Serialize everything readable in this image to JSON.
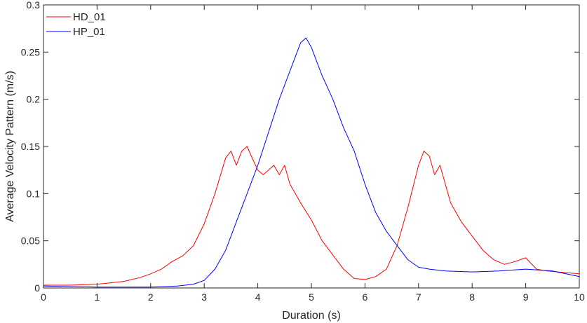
{
  "chart_data": {
    "type": "line",
    "title": "",
    "xlabel": "Duration (s)",
    "ylabel": "Average Velocity Pattern (m/s)",
    "xlim": [
      0,
      10
    ],
    "ylim": [
      0,
      0.3
    ],
    "x_ticks": [
      0,
      1,
      2,
      3,
      4,
      5,
      6,
      7,
      8,
      9,
      10
    ],
    "x_tick_labels": [
      "0",
      "1",
      "2",
      "3",
      "4",
      "5",
      "6",
      "7",
      "8",
      "9",
      "10"
    ],
    "y_ticks": [
      0,
      0.05,
      0.1,
      0.15,
      0.2,
      0.25,
      0.3
    ],
    "y_tick_labels": [
      "0",
      "0.05",
      "0.1",
      "0.15",
      "0.2",
      "0.25",
      "0.3"
    ],
    "grid": false,
    "legend_position": "top-left",
    "series": [
      {
        "name": "HD_01",
        "color": "#ff0000",
        "x": [
          0,
          0.5,
          1.0,
          1.5,
          1.8,
          2.0,
          2.2,
          2.4,
          2.6,
          2.8,
          3.0,
          3.2,
          3.4,
          3.5,
          3.6,
          3.7,
          3.8,
          3.9,
          4.0,
          4.1,
          4.2,
          4.3,
          4.4,
          4.5,
          4.6,
          4.7,
          4.8,
          5.0,
          5.2,
          5.4,
          5.6,
          5.8,
          6.0,
          6.2,
          6.4,
          6.6,
          6.8,
          7.0,
          7.1,
          7.2,
          7.3,
          7.4,
          7.5,
          7.6,
          7.8,
          8.0,
          8.2,
          8.4,
          8.6,
          8.8,
          9.0,
          9.2,
          9.4,
          9.6,
          9.8,
          10.0
        ],
        "y": [
          0.003,
          0.003,
          0.004,
          0.007,
          0.011,
          0.015,
          0.02,
          0.028,
          0.034,
          0.045,
          0.068,
          0.1,
          0.138,
          0.145,
          0.13,
          0.145,
          0.15,
          0.137,
          0.125,
          0.12,
          0.125,
          0.13,
          0.12,
          0.13,
          0.11,
          0.1,
          0.09,
          0.072,
          0.05,
          0.035,
          0.02,
          0.01,
          0.009,
          0.012,
          0.02,
          0.045,
          0.085,
          0.13,
          0.145,
          0.14,
          0.12,
          0.13,
          0.11,
          0.09,
          0.07,
          0.055,
          0.04,
          0.03,
          0.025,
          0.028,
          0.032,
          0.02,
          0.018,
          0.017,
          0.016,
          0.015
        ]
      },
      {
        "name": "HP_01",
        "color": "#0000ff",
        "x": [
          0,
          1.0,
          2.0,
          2.5,
          2.8,
          3.0,
          3.2,
          3.4,
          3.6,
          3.8,
          4.0,
          4.2,
          4.4,
          4.6,
          4.8,
          4.9,
          5.0,
          5.1,
          5.2,
          5.4,
          5.6,
          5.8,
          6.0,
          6.2,
          6.4,
          6.6,
          6.8,
          7.0,
          7.2,
          7.5,
          8.0,
          8.5,
          9.0,
          9.5,
          10.0
        ],
        "y": [
          0.002,
          0.001,
          0.001,
          0.002,
          0.004,
          0.008,
          0.02,
          0.04,
          0.07,
          0.1,
          0.13,
          0.165,
          0.2,
          0.23,
          0.26,
          0.265,
          0.255,
          0.24,
          0.225,
          0.2,
          0.17,
          0.145,
          0.11,
          0.08,
          0.06,
          0.045,
          0.03,
          0.022,
          0.02,
          0.018,
          0.017,
          0.018,
          0.02,
          0.018,
          0.012
        ]
      }
    ]
  }
}
